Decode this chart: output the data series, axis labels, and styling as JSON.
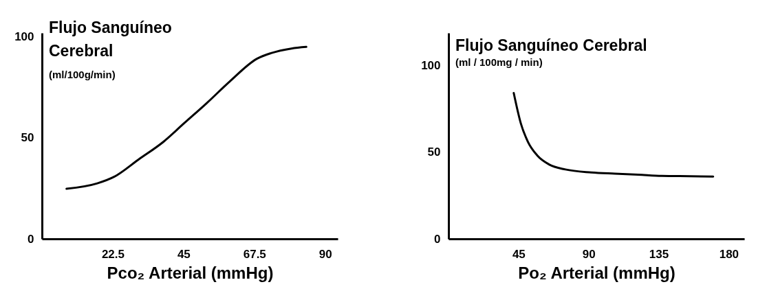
{
  "chart_data": [
    {
      "type": "line",
      "title": "Flujo Sanguíneo\nCerebral",
      "subtitle": "(ml/100g/min)",
      "xlabel": "Pco₂ Arterial  (mmHg)",
      "xlim": [
        0,
        94
      ],
      "xticks": [
        22.5,
        45,
        67.5,
        90
      ],
      "ylim": [
        0,
        102
      ],
      "yticks": [
        0,
        50,
        100
      ],
      "grid": false,
      "series": [
        {
          "color": "#000000",
          "x": [
            7.8,
            17.6,
            23,
            30.6,
            38.7,
            45.2,
            52.4,
            59.7,
            68.4,
            72.8,
            79.3,
            84
          ],
          "values": [
            24.8,
            27.5,
            30.8,
            39.2,
            48.2,
            57.3,
            67.3,
            78,
            89.3,
            92,
            94.3,
            95.1
          ]
        }
      ]
    },
    {
      "type": "line",
      "title": "Flujo Sanguíneo Cerebral",
      "subtitle": "(ml / 100mg / min)",
      "xlabel": "Po₂ Arterial  (mmHg)",
      "xlim": [
        0,
        190
      ],
      "xticks": [
        45,
        90,
        135,
        180
      ],
      "ylim": [
        0,
        119
      ],
      "yticks": [
        0,
        50,
        100
      ],
      "grid": false,
      "series": [
        {
          "color": "#000000",
          "x": [
            41.9,
            46.5,
            51,
            57,
            64.6,
            75.1,
            91.7,
            106.8,
            121.9,
            137,
            155,
            170
          ],
          "values": [
            84.3,
            66.6,
            56.1,
            48.2,
            43,
            40.1,
            38.4,
            37.7,
            37.1,
            36.4,
            36.2,
            36
          ]
        }
      ]
    }
  ]
}
